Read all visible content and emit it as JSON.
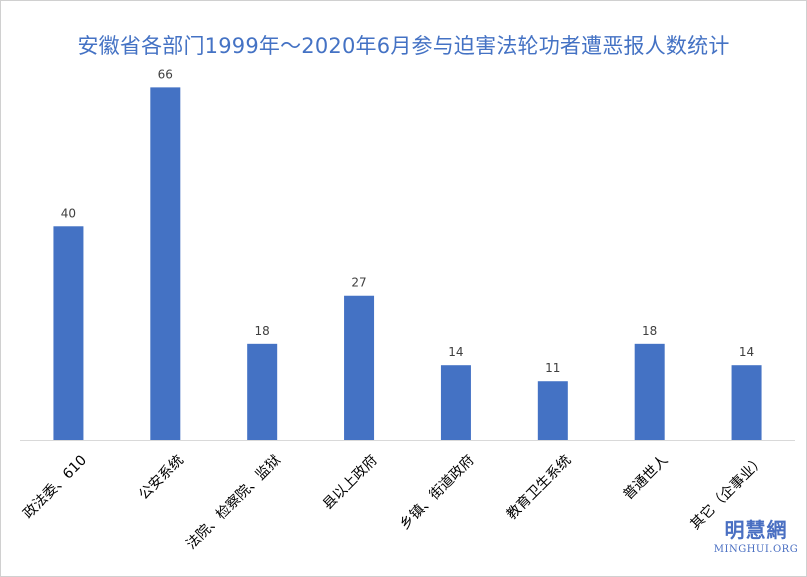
{
  "chart_data": {
    "type": "bar",
    "title": "安徽省各部门1999年～2020年6月参与迫害法轮功者遭恶报人数统计",
    "categories": [
      "政法委、610",
      "公安系统",
      "法院、检察院、监狱",
      "县以上政府",
      "乡镇、街道政府",
      "教育卫生系统",
      "普通世人",
      "其它（企事业）"
    ],
    "values": [
      40,
      66,
      18,
      27,
      14,
      11,
      18,
      14
    ],
    "ylim": [
      0,
      70
    ],
    "grid": false,
    "legend": "none",
    "bar_color": "#4472c4"
  },
  "watermark": {
    "chinese": "明慧網",
    "english": "MINGHUI.ORG"
  }
}
